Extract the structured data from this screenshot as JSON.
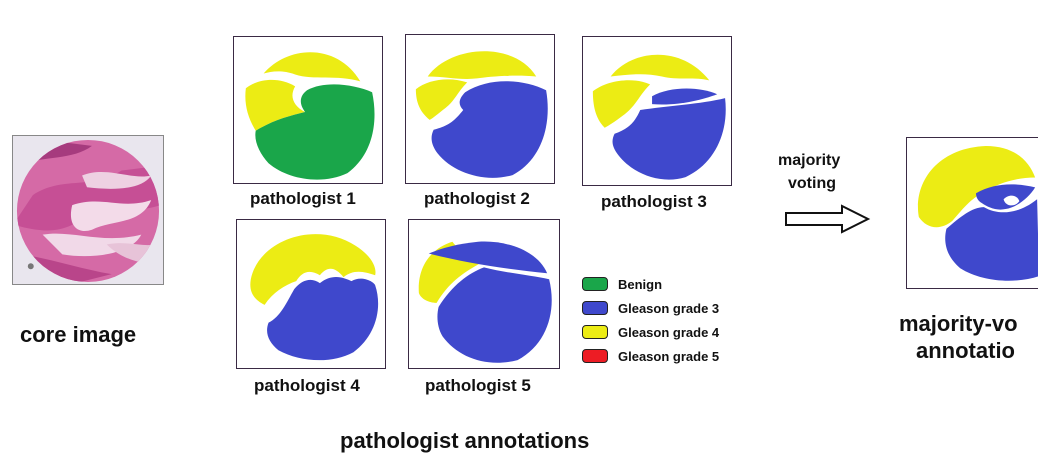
{
  "core": {
    "label": "core image"
  },
  "pathologists": [
    {
      "label": "pathologist 1"
    },
    {
      "label": "pathologist 2"
    },
    {
      "label": "pathologist 3"
    },
    {
      "label": "pathologist 4"
    },
    {
      "label": "pathologist 5"
    }
  ],
  "legend": [
    {
      "label": "Benign",
      "color": "#1aa64a"
    },
    {
      "label": "Gleason grade 3",
      "color": "#3f48cc"
    },
    {
      "label": "Gleason grade 4",
      "color": "#ecec14"
    },
    {
      "label": "Gleason grade 5",
      "color": "#ed1c24"
    }
  ],
  "arrow": {
    "line1": "majority",
    "line2": "voting"
  },
  "result": {
    "line1": "majority-vo",
    "line2": "annotatio"
  },
  "footer": "pathologist annotations",
  "colors": {
    "benign": "#1aa64a",
    "g3": "#3f48cc",
    "g4": "#ecec14",
    "tissue": "#d86aa8",
    "frame": "#3a2a44"
  }
}
